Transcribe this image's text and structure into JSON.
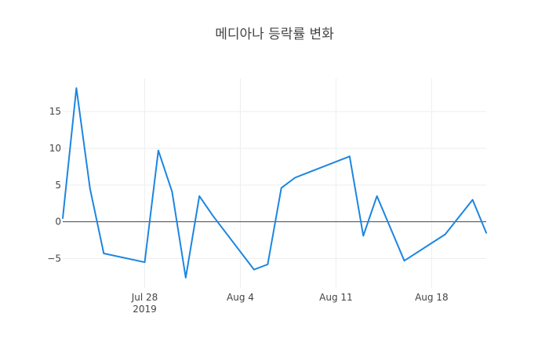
{
  "chart_data": {
    "type": "line",
    "title": "메디아나 등락률 변화",
    "xlabel": "",
    "ylabel": "",
    "x_axis": {
      "type": "date",
      "range": [
        "2019-07-22",
        "2019-08-22"
      ],
      "tick_labels": [
        {
          "date": "2019-07-28",
          "label": "Jul 28",
          "sublabel": "2019"
        },
        {
          "date": "2019-08-04",
          "label": "Aug 4",
          "sublabel": ""
        },
        {
          "date": "2019-08-11",
          "label": "Aug 11",
          "sublabel": ""
        },
        {
          "date": "2019-08-18",
          "label": "Aug 18",
          "sublabel": ""
        }
      ]
    },
    "y_axis": {
      "range": [
        -9,
        19.5
      ],
      "ticks": [
        {
          "value": -5,
          "label": "−5"
        },
        {
          "value": 0,
          "label": "0"
        },
        {
          "value": 5,
          "label": "5"
        },
        {
          "value": 10,
          "label": "10"
        },
        {
          "value": 15,
          "label": "15"
        }
      ],
      "zeroline": true
    },
    "grid": true,
    "series": [
      {
        "color": "#1c86e0",
        "x": [
          "2019-07-22",
          "2019-07-23",
          "2019-07-24",
          "2019-07-25",
          "2019-07-28",
          "2019-07-29",
          "2019-07-30",
          "2019-07-31",
          "2019-08-01",
          "2019-08-02",
          "2019-08-05",
          "2019-08-06",
          "2019-08-07",
          "2019-08-08",
          "2019-08-12",
          "2019-08-13",
          "2019-08-14",
          "2019-08-16",
          "2019-08-19",
          "2019-08-21",
          "2019-08-22"
        ],
        "y": [
          0.5,
          18.2,
          4.5,
          -4.3,
          -5.5,
          9.7,
          4.1,
          -7.6,
          3.5,
          0.8,
          -6.5,
          -5.8,
          4.6,
          6.0,
          8.9,
          -1.9,
          3.5,
          -5.3,
          -1.7,
          3.0,
          -1.5
        ]
      }
    ]
  }
}
